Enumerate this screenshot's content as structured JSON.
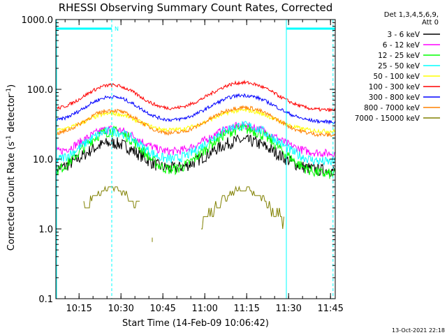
{
  "chart_data": {
    "type": "line",
    "title": "RHESSI Observing Summary Count Rates, Corrected",
    "xlabel": "Start Time (14-Feb-09 10:06:42)",
    "ylabel_main": "Corrected Count Rate (s",
    "ylabel_exp1": "-1",
    "ylabel_mid": " detector",
    "ylabel_exp2": "-1",
    "ylabel_end": ")",
    "yscale": "log",
    "ylim": [
      0.1,
      1000
    ],
    "xlim_minutes": [
      0,
      100
    ],
    "x_ticks": [
      {
        "label": "10:15",
        "min": 8.3
      },
      {
        "label": "10:30",
        "min": 23.3
      },
      {
        "label": "10:45",
        "min": 38.3
      },
      {
        "label": "11:00",
        "min": 53.3
      },
      {
        "label": "11:15",
        "min": 68.3
      },
      {
        "label": "11:30",
        "min": 83.3
      },
      {
        "label": "11:45",
        "min": 98.3
      }
    ],
    "y_ticks": [
      {
        "label": "1000.0",
        "value": 1000
      },
      {
        "label": "100.0",
        "value": 100
      },
      {
        "label": "10.0",
        "value": 10
      },
      {
        "label": "1.0",
        "value": 1
      },
      {
        "label": "0.1",
        "value": 0.1
      }
    ],
    "legend_header": [
      "Det 1,3,4,5,6,9,",
      "Att 0"
    ],
    "legend_position": "top-right",
    "series": [
      {
        "name": "3 - 6 keV",
        "color": "#000000",
        "base": 6.8,
        "peaks": [
          17,
          18.5
        ],
        "noise": 0.09
      },
      {
        "name": "6 - 12 keV",
        "color": "#ff00ff",
        "base": 12,
        "peaks": [
          27,
          30
        ],
        "noise": 0.06
      },
      {
        "name": "12 - 25 keV",
        "color": "#00ff00",
        "base": 6.0,
        "peaks": [
          25,
          27
        ],
        "noise": 0.08
      },
      {
        "name": "25 - 50 keV",
        "color": "#00ffff",
        "base": 9.0,
        "peaks": [
          25,
          30
        ],
        "noise": 0.07
      },
      {
        "name": "50 - 100 keV",
        "color": "#ffff00",
        "base": 25,
        "peaks": [
          45,
          50
        ],
        "noise": 0.03
      },
      {
        "name": "100 - 300 keV",
        "color": "#ff0000",
        "base": 50,
        "peaks": [
          115,
          125
        ],
        "noise": 0.025
      },
      {
        "name": "300 - 800 keV",
        "color": "#0000ff",
        "base": 34,
        "peaks": [
          78,
          82
        ],
        "noise": 0.025
      },
      {
        "name": "800 - 7000 keV",
        "color": "#ff8000",
        "base": 22,
        "peaks": [
          50,
          55
        ],
        "noise": 0.03
      },
      {
        "name": "7000 - 15000 keV",
        "color": "#808000",
        "base": 1.0,
        "peaks": [
          3.5,
          3.5
        ],
        "noise": 0
      }
    ],
    "flare_peaks_minutes": [
      20,
      67
    ],
    "markers": {
      "night_label": "N",
      "night_bars_minutes": [
        [
          0,
          20
        ],
        [
          82.5,
          100
        ]
      ],
      "vertical_lines_minutes": [
        20,
        82.5,
        99.2
      ]
    },
    "colors": {
      "marker": "#00ffff"
    }
  },
  "footer": {
    "timestamp": "13-Oct-2021 22:18"
  }
}
